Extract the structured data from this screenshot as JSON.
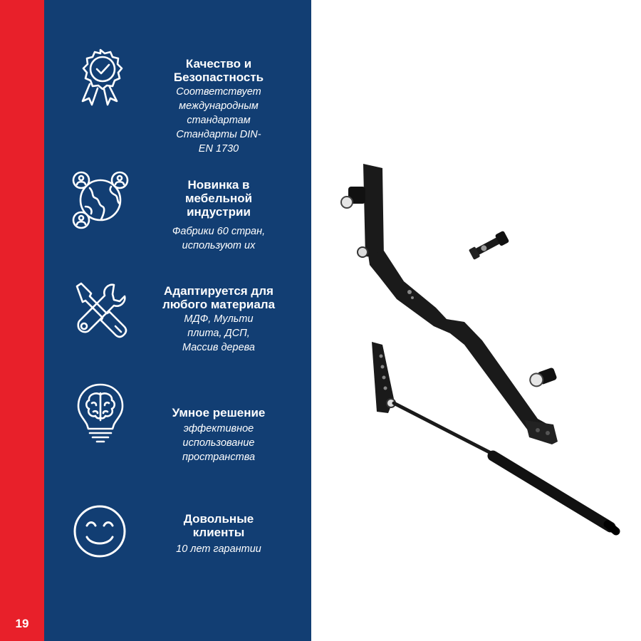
{
  "page": {
    "number": "19",
    "colors": {
      "red": "#e8202a",
      "blue": "#123e73",
      "white": "#ffffff",
      "product": "#1a1a1a"
    }
  },
  "features": [
    {
      "icon": "quality-rosette-check-icon",
      "title": "Качество и\nБезопастность",
      "description": "Соответствует\nмеждународным\nстандартам\nСтандарты DIN-\nEN 1730"
    },
    {
      "icon": "globe-people-icon",
      "title": "Новинка в\nмебельной\nиндустрии",
      "description": "Фабрики 60 стран,\nиспользуют их"
    },
    {
      "icon": "wrench-screwdriver-icon",
      "title": "Адаптируется для\nлюбого материала",
      "description": "МДФ, Мульти\nплита, ДСП,\nМассив дерева"
    },
    {
      "icon": "lightbulb-brain-icon",
      "title": "Умное решение",
      "description": "эффективное\nиспользование\nпространства"
    },
    {
      "icon": "smiley-face-icon",
      "title": "Довольные\nклиенты",
      "description": "10 лет гарантии"
    }
  ],
  "product_image": {
    "icon": "lift-mechanism-product-image"
  }
}
